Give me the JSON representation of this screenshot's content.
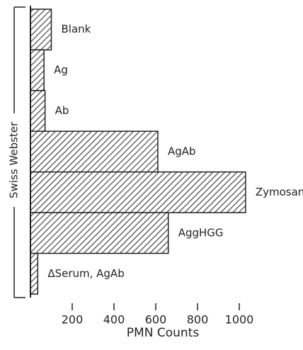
{
  "chart_data": {
    "type": "barh",
    "categories": [
      "Blank",
      "Ag",
      "Ab",
      "AgAb",
      "Zymosan",
      "AggHGG",
      "ΔSerum, AgAb"
    ],
    "values": [
      100,
      65,
      70,
      610,
      1030,
      660,
      35
    ],
    "color": "#222222",
    "xlim": [
      0,
      1100
    ],
    "xticks": [
      200,
      400,
      600,
      800,
      1000
    ],
    "xlabel": "PMN Counts",
    "ylabel": "Swiss Webster"
  }
}
